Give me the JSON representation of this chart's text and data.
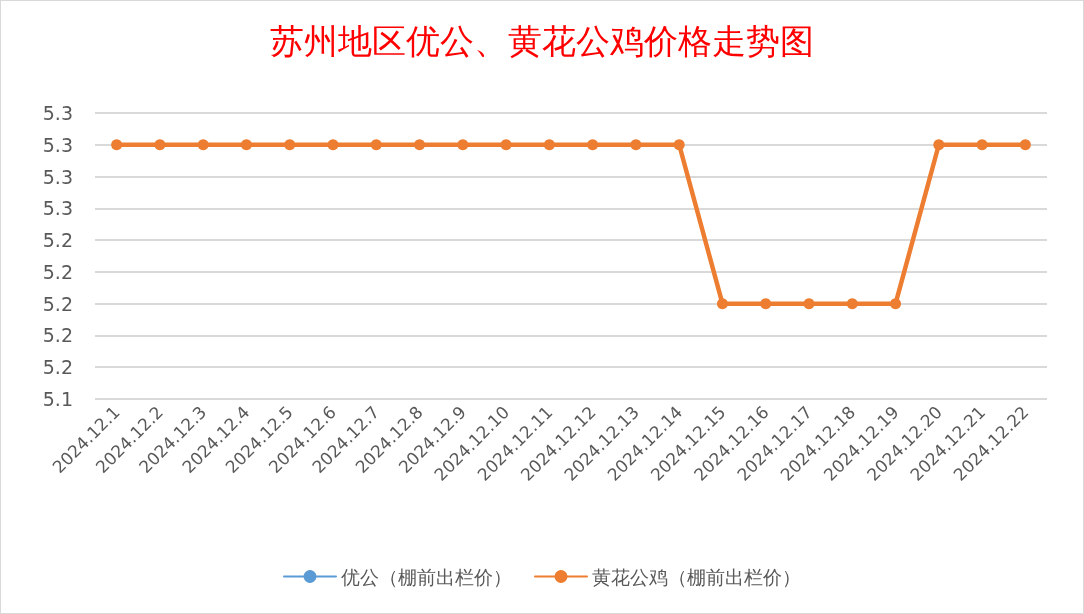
{
  "chart_data": {
    "type": "line",
    "title": "苏州地区优公、黄花公鸡价格走势图",
    "categories": [
      "2024.12.1",
      "2024.12.2",
      "2024.12.3",
      "2024.12.4",
      "2024.12.5",
      "2024.12.6",
      "2024.12.7",
      "2024.12.8",
      "2024.12.9",
      "2024.12.10",
      "2024.12.11",
      "2024.12.12",
      "2024.12.13",
      "2024.12.14",
      "2024.12.15",
      "2024.12.16",
      "2024.12.17",
      "2024.12.18",
      "2024.12.19",
      "2024.12.20",
      "2024.12.21",
      "2024.12.22"
    ],
    "series": [
      {
        "name": "优公（棚前出栏价）",
        "color": "#5b9bd5",
        "values": [
          null,
          null,
          null,
          null,
          null,
          null,
          null,
          null,
          null,
          null,
          null,
          null,
          null,
          null,
          null,
          null,
          null,
          null,
          null,
          null,
          null,
          null
        ]
      },
      {
        "name": "黄花公鸡（棚前出栏价）",
        "color": "#ed7d31",
        "values": [
          5.3,
          5.3,
          5.3,
          5.3,
          5.3,
          5.3,
          5.3,
          5.3,
          5.3,
          5.3,
          5.3,
          5.3,
          5.3,
          5.3,
          5.2,
          5.2,
          5.2,
          5.2,
          5.2,
          5.3,
          5.3,
          5.3
        ]
      }
    ],
    "ylim": [
      5.14,
      5.32
    ],
    "yticks": [
      {
        "value": 5.14,
        "label": "5.1"
      },
      {
        "value": 5.16,
        "label": "5.2"
      },
      {
        "value": 5.18,
        "label": "5.2"
      },
      {
        "value": 5.2,
        "label": "5.2"
      },
      {
        "value": 5.22,
        "label": "5.2"
      },
      {
        "value": 5.24,
        "label": "5.2"
      },
      {
        "value": 5.26,
        "label": "5.3"
      },
      {
        "value": 5.28,
        "label": "5.3"
      },
      {
        "value": 5.3,
        "label": "5.3"
      },
      {
        "value": 5.32,
        "label": "5.3"
      }
    ],
    "grid": "y",
    "legend": "bottom",
    "marker": "circle",
    "line_style": "solid"
  }
}
